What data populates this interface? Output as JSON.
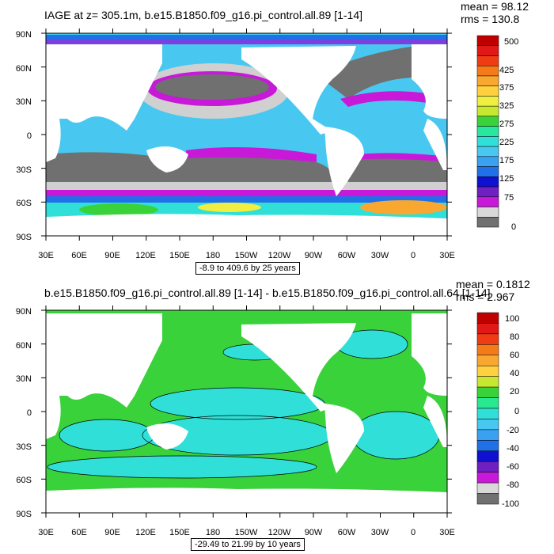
{
  "panels": [
    {
      "title": "IAGE at z= 305.1m, b.e15.B1850.f09_g16.pi_control.all.89 [1-14]",
      "mean": "mean = 98.12",
      "rms": "rms = 130.8",
      "range": "-8.9 to 409.6 by 25 years",
      "lat_labels": [
        "90N",
        "60N",
        "30N",
        "0",
        "30S",
        "60S",
        "90S"
      ],
      "lon_labels": [
        "30E",
        "60E",
        "90E",
        "120E",
        "150E",
        "180",
        "150W",
        "120W",
        "90W",
        "60W",
        "30W",
        "0",
        "30E"
      ],
      "colorbar_labels": [
        "500",
        "425",
        "375",
        "325",
        "275",
        "225",
        "175",
        "125",
        "75",
        "0"
      ],
      "colorbar_colors": [
        "#c00000",
        "#e01818",
        "#f03c14",
        "#f47a1a",
        "#f8a830",
        "#ffd040",
        "#f0ee40",
        "#c8e830",
        "#3ad23a",
        "#28e8a0",
        "#30e0d8",
        "#48c8f0",
        "#3aa0f0",
        "#2070e8",
        "#1010d0",
        "#7020c0",
        "#c818d8",
        "#d8d8d8",
        "#707070"
      ],
      "colors": {
        "land": "#ffffff",
        "ocean_old": "#707070",
        "ocean_gray": "#d0d0d0",
        "magenta": "#c818d8",
        "cyan": "#30e0d8",
        "lightblue": "#48c8f0",
        "blue": "#2070e8",
        "orange": "#f8a830",
        "green": "#3ad23a"
      }
    },
    {
      "title": "b.e15.B1850.f09_g16.pi_control.all.89 [1-14] - b.e15.B1850.f09_g16.pi_control.all.64 [1-14]",
      "mean": "mean = 0.1812",
      "rms": "rms = 2.967",
      "range": "-29.49 to 21.99 by 10 years",
      "lat_labels": [
        "90N",
        "60N",
        "30N",
        "0",
        "30S",
        "60S",
        "90S"
      ],
      "lon_labels": [
        "30E",
        "60E",
        "90E",
        "120E",
        "150E",
        "180",
        "150W",
        "120W",
        "90W",
        "60W",
        "30W",
        "0",
        "30E"
      ],
      "colorbar_labels": [
        "100",
        "80",
        "60",
        "40",
        "20",
        "0",
        "-20",
        "-40",
        "-60",
        "-80",
        "-100"
      ],
      "colorbar_colors": [
        "#c00000",
        "#e01818",
        "#f03c14",
        "#f47a1a",
        "#f8a830",
        "#ffd040",
        "#c8e830",
        "#3ad23a",
        "#28e890",
        "#30e0d8",
        "#48c8f0",
        "#3aa0f0",
        "#2070e8",
        "#1010d0",
        "#7020c0",
        "#c818d8",
        "#d8d8d8",
        "#707070"
      ],
      "colors": {
        "land": "#ffffff",
        "ocean_green": "#3ad23a",
        "ocean_cyan": "#30e0d8"
      }
    }
  ]
}
